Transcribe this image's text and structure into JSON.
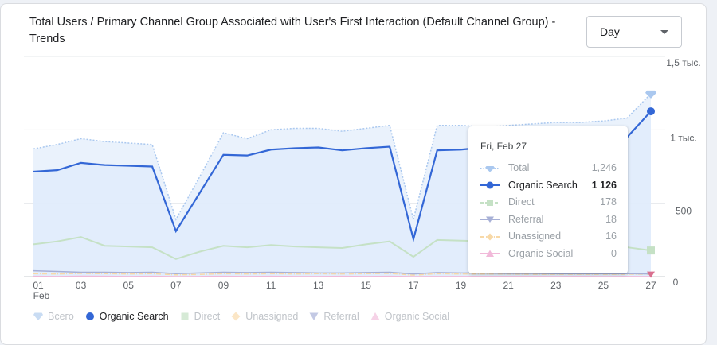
{
  "card": {
    "title": "Total Users / Primary Channel Group Associated with User's First Interaction (Default Channel Group) - Trends"
  },
  "granularity": {
    "selected": "Day"
  },
  "colors": {
    "total": "#aac8ef",
    "organic_search": "#3367d6",
    "organic_fill": "#e8f1fc",
    "direct": "#c5e1c5",
    "referral": "#a7b0d6",
    "unassigned": "#f8d9a8",
    "organic_social": "#f1b9d9",
    "grid": "#e6e8eb"
  },
  "chart_data": {
    "type": "line",
    "x_ticks": [
      "01",
      "03",
      "05",
      "07",
      "09",
      "11",
      "13",
      "15",
      "17",
      "19",
      "21",
      "23",
      "25",
      "27"
    ],
    "x_sublabel": "Feb",
    "y_ticks": [
      "0",
      "500",
      "1 тыс.",
      "1,5 тыс."
    ],
    "ylim": [
      0,
      1500
    ],
    "days": [
      1,
      2,
      3,
      4,
      5,
      6,
      7,
      8,
      9,
      10,
      11,
      12,
      13,
      14,
      15,
      16,
      17,
      18,
      19,
      20,
      21,
      22,
      23,
      24,
      25,
      26,
      27
    ],
    "series": [
      {
        "name": "Всего",
        "values": [
          870,
          900,
          940,
          920,
          910,
          900,
          390,
          680,
          980,
          940,
          1000,
          1010,
          1010,
          990,
          1010,
          1030,
          390,
          1030,
          1030,
          1020,
          1030,
          1040,
          1050,
          1050,
          1060,
          1080,
          1246
        ]
      },
      {
        "name": "Organic Search",
        "values": [
          715,
          725,
          775,
          760,
          755,
          750,
          310,
          570,
          830,
          825,
          865,
          875,
          880,
          860,
          875,
          885,
          255,
          860,
          865,
          880,
          890,
          900,
          910,
          915,
          930,
          950,
          1126
        ]
      },
      {
        "name": "Direct",
        "values": [
          220,
          240,
          270,
          210,
          205,
          200,
          120,
          170,
          210,
          200,
          215,
          205,
          200,
          195,
          220,
          240,
          135,
          250,
          245,
          240,
          230,
          225,
          220,
          215,
          210,
          200,
          178
        ]
      },
      {
        "name": "Referral",
        "values": [
          40,
          35,
          30,
          30,
          28,
          30,
          20,
          25,
          30,
          28,
          30,
          28,
          25,
          25,
          28,
          30,
          18,
          28,
          25,
          25,
          22,
          22,
          20,
          20,
          20,
          20,
          18
        ]
      },
      {
        "name": "Unassigned",
        "values": [
          20,
          18,
          22,
          20,
          18,
          20,
          12,
          15,
          20,
          18,
          20,
          18,
          20,
          18,
          20,
          22,
          10,
          20,
          18,
          18,
          18,
          16,
          16,
          16,
          16,
          16,
          16
        ]
      },
      {
        "name": "Organic Social",
        "values": [
          2,
          1,
          3,
          2,
          1,
          2,
          0,
          1,
          2,
          1,
          2,
          1,
          1,
          2,
          1,
          2,
          0,
          1,
          1,
          1,
          1,
          1,
          0,
          1,
          0,
          1,
          0
        ]
      }
    ]
  },
  "tooltip": {
    "date": "Fri, Feb 27",
    "rows": [
      {
        "label": "Total",
        "value": "1,246"
      },
      {
        "label": "Organic Search",
        "value": "1 126"
      },
      {
        "label": "Direct",
        "value": "178"
      },
      {
        "label": "Referral",
        "value": "18"
      },
      {
        "label": "Unassigned",
        "value": "16"
      },
      {
        "label": "Organic Social",
        "value": "0"
      }
    ]
  },
  "legend": [
    {
      "label": "Всего",
      "active": false
    },
    {
      "label": "Organic Search",
      "active": true
    },
    {
      "label": "Direct",
      "active": false
    },
    {
      "label": "Unassigned",
      "active": false
    },
    {
      "label": "Referral",
      "active": false
    },
    {
      "label": "Organic Social",
      "active": false
    }
  ]
}
